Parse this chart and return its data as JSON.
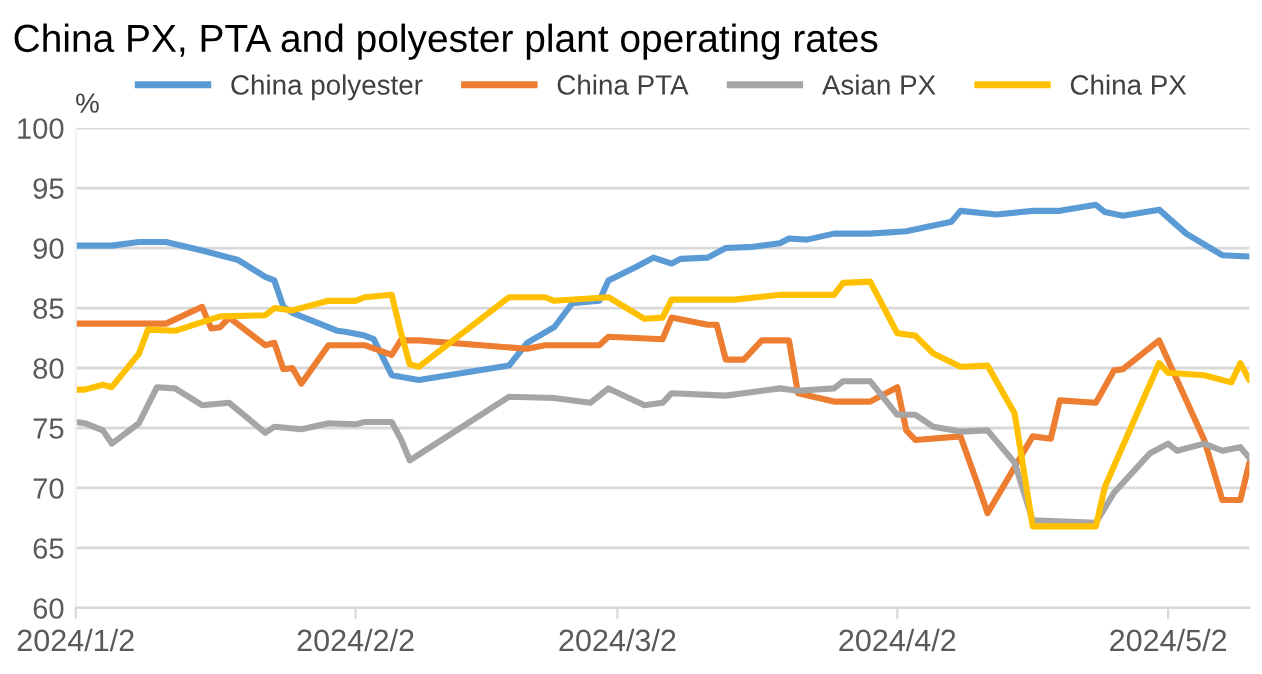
{
  "chart_data": {
    "type": "line",
    "title": "China PX, PTA and polyester plant operating rates",
    "ylabel": "%",
    "xlim": [
      "2024-01-02",
      "2024-05-11"
    ],
    "xticks": [
      {
        "value": "2024-01-02",
        "label": "2024/1/2"
      },
      {
        "value": "2024-02-02",
        "label": "2024/2/2"
      },
      {
        "value": "2024-03-02",
        "label": "2024/3/2"
      },
      {
        "value": "2024-04-02",
        "label": "2024/4/2"
      },
      {
        "value": "2024-05-02",
        "label": "2024/5/2"
      }
    ],
    "ylim": [
      60,
      100
    ],
    "yticks": [
      60,
      65,
      70,
      75,
      80,
      85,
      90,
      95,
      100
    ],
    "grid": "y",
    "legend": "top",
    "marker": "none",
    "line_style": "solid",
    "series": [
      {
        "name": "China polyester",
        "color": "#5b9bd5",
        "x": [
          "2024-01-02",
          "2024-01-06",
          "2024-01-09",
          "2024-01-12",
          "2024-01-16",
          "2024-01-18",
          "2024-01-20",
          "2024-01-23",
          "2024-01-24",
          "2024-01-25",
          "2024-01-26",
          "2024-01-29",
          "2024-01-31",
          "2024-02-01",
          "2024-02-03",
          "2024-02-04",
          "2024-02-05",
          "2024-02-06",
          "2024-02-09",
          "2024-02-19",
          "2024-02-21",
          "2024-02-24",
          "2024-02-26",
          "2024-02-29",
          "2024-03-01",
          "2024-03-04",
          "2024-03-06",
          "2024-03-08",
          "2024-03-09",
          "2024-03-12",
          "2024-03-14",
          "2024-03-17",
          "2024-03-20",
          "2024-03-21",
          "2024-03-23",
          "2024-03-26",
          "2024-03-30",
          "2024-04-03",
          "2024-04-08",
          "2024-04-09",
          "2024-04-13",
          "2024-04-17",
          "2024-04-20",
          "2024-04-24",
          "2024-04-25",
          "2024-04-27",
          "2024-05-01",
          "2024-05-04",
          "2024-05-08",
          "2024-05-11"
        ],
        "values": [
          90.2,
          90.2,
          90.5,
          90.5,
          89.8,
          89.4,
          89.0,
          87.6,
          87.3,
          85.1,
          84.6,
          83.7,
          83.1,
          83.0,
          82.7,
          82.4,
          80.9,
          79.4,
          79.0,
          80.2,
          82.1,
          83.4,
          85.4,
          85.6,
          87.3,
          88.4,
          89.2,
          88.7,
          89.1,
          89.2,
          90.0,
          90.1,
          90.4,
          90.8,
          90.7,
          91.2,
          91.2,
          91.4,
          92.2,
          93.1,
          92.8,
          93.1,
          93.1,
          93.6,
          93.0,
          92.7,
          93.2,
          91.2,
          89.4,
          89.3
        ]
      },
      {
        "name": "China PTA",
        "color": "#ed7d31",
        "x": [
          "2024-01-02",
          "2024-01-12",
          "2024-01-16",
          "2024-01-17",
          "2024-01-18",
          "2024-01-19",
          "2024-01-23",
          "2024-01-24",
          "2024-01-25",
          "2024-01-26",
          "2024-01-27",
          "2024-01-30",
          "2024-02-03",
          "2024-02-06",
          "2024-02-07",
          "2024-02-09",
          "2024-02-21",
          "2024-02-23",
          "2024-02-29",
          "2024-03-01",
          "2024-03-07",
          "2024-03-08",
          "2024-03-12",
          "2024-03-13",
          "2024-03-14",
          "2024-03-16",
          "2024-03-18",
          "2024-03-21",
          "2024-03-22",
          "2024-03-26",
          "2024-03-30",
          "2024-04-02",
          "2024-04-03",
          "2024-04-04",
          "2024-04-09",
          "2024-04-11",
          "2024-04-12",
          "2024-04-17",
          "2024-04-19",
          "2024-04-20",
          "2024-04-24",
          "2024-04-26",
          "2024-04-27",
          "2024-05-01",
          "2024-05-06",
          "2024-05-08",
          "2024-05-10",
          "2024-05-11"
        ],
        "values": [
          83.7,
          83.7,
          85.1,
          83.3,
          83.4,
          84.2,
          81.9,
          82.1,
          79.9,
          80.0,
          78.7,
          81.9,
          81.9,
          81.1,
          82.3,
          82.3,
          81.6,
          81.9,
          81.9,
          82.6,
          82.4,
          84.2,
          83.6,
          83.6,
          80.7,
          80.7,
          82.3,
          82.3,
          77.9,
          77.2,
          77.2,
          78.4,
          74.8,
          74.0,
          74.3,
          70.1,
          67.9,
          74.3,
          74.1,
          77.3,
          77.1,
          79.8,
          79.9,
          82.3,
          74.0,
          69.0,
          69.0,
          72.1
        ]
      },
      {
        "name": "Asian PX",
        "color": "#a5a5a5",
        "x": [
          "2024-01-02",
          "2024-01-03",
          "2024-01-05",
          "2024-01-06",
          "2024-01-09",
          "2024-01-11",
          "2024-01-13",
          "2024-01-16",
          "2024-01-19",
          "2024-01-23",
          "2024-01-24",
          "2024-01-27",
          "2024-01-30",
          "2024-02-02",
          "2024-02-03",
          "2024-02-06",
          "2024-02-07",
          "2024-02-08",
          "2024-02-19",
          "2024-02-24",
          "2024-02-28",
          "2024-03-01",
          "2024-03-05",
          "2024-03-07",
          "2024-03-08",
          "2024-03-14",
          "2024-03-20",
          "2024-03-22",
          "2024-03-26",
          "2024-03-27",
          "2024-03-30",
          "2024-04-02",
          "2024-04-04",
          "2024-04-06",
          "2024-04-09",
          "2024-04-12",
          "2024-04-15",
          "2024-04-17",
          "2024-04-24",
          "2024-04-26",
          "2024-04-30",
          "2024-05-02",
          "2024-05-03",
          "2024-05-06",
          "2024-05-08",
          "2024-05-10",
          "2024-05-11"
        ],
        "values": [
          75.5,
          75.4,
          74.8,
          73.7,
          75.4,
          78.4,
          78.3,
          76.9,
          77.1,
          74.6,
          75.1,
          74.9,
          75.4,
          75.3,
          75.5,
          75.5,
          74.1,
          72.3,
          77.6,
          77.5,
          77.1,
          78.3,
          76.9,
          77.1,
          77.9,
          77.7,
          78.3,
          78.1,
          78.3,
          78.9,
          78.9,
          76.1,
          76.1,
          75.1,
          74.7,
          74.8,
          72.1,
          67.3,
          67.1,
          69.6,
          72.9,
          73.7,
          73.1,
          73.7,
          73.1,
          73.4,
          72.5
        ]
      },
      {
        "name": "China PX",
        "color": "#ffc000",
        "x": [
          "2024-01-02",
          "2024-01-03",
          "2024-01-05",
          "2024-01-06",
          "2024-01-09",
          "2024-01-10",
          "2024-01-13",
          "2024-01-18",
          "2024-01-23",
          "2024-01-24",
          "2024-01-26",
          "2024-01-30",
          "2024-02-02",
          "2024-02-03",
          "2024-02-06",
          "2024-02-07",
          "2024-02-08",
          "2024-02-09",
          "2024-02-19",
          "2024-02-23",
          "2024-02-24",
          "2024-03-01",
          "2024-03-05",
          "2024-03-07",
          "2024-03-08",
          "2024-03-15",
          "2024-03-20",
          "2024-03-26",
          "2024-03-27",
          "2024-03-30",
          "2024-04-02",
          "2024-04-04",
          "2024-04-06",
          "2024-04-09",
          "2024-04-12",
          "2024-04-15",
          "2024-04-17",
          "2024-04-24",
          "2024-04-25",
          "2024-05-01",
          "2024-05-02",
          "2024-05-06",
          "2024-05-09",
          "2024-05-10",
          "2024-05-11"
        ],
        "values": [
          78.2,
          78.2,
          78.6,
          78.4,
          81.2,
          83.2,
          83.1,
          84.3,
          84.4,
          85.0,
          84.8,
          85.6,
          85.6,
          85.9,
          86.1,
          83.0,
          80.3,
          80.1,
          85.9,
          85.9,
          85.6,
          85.9,
          84.1,
          84.2,
          85.7,
          85.7,
          86.1,
          86.1,
          87.1,
          87.2,
          82.9,
          82.7,
          81.2,
          80.1,
          80.2,
          76.2,
          66.8,
          66.8,
          70.1,
          80.4,
          79.6,
          79.4,
          78.8,
          80.4,
          79.0
        ]
      }
    ]
  }
}
